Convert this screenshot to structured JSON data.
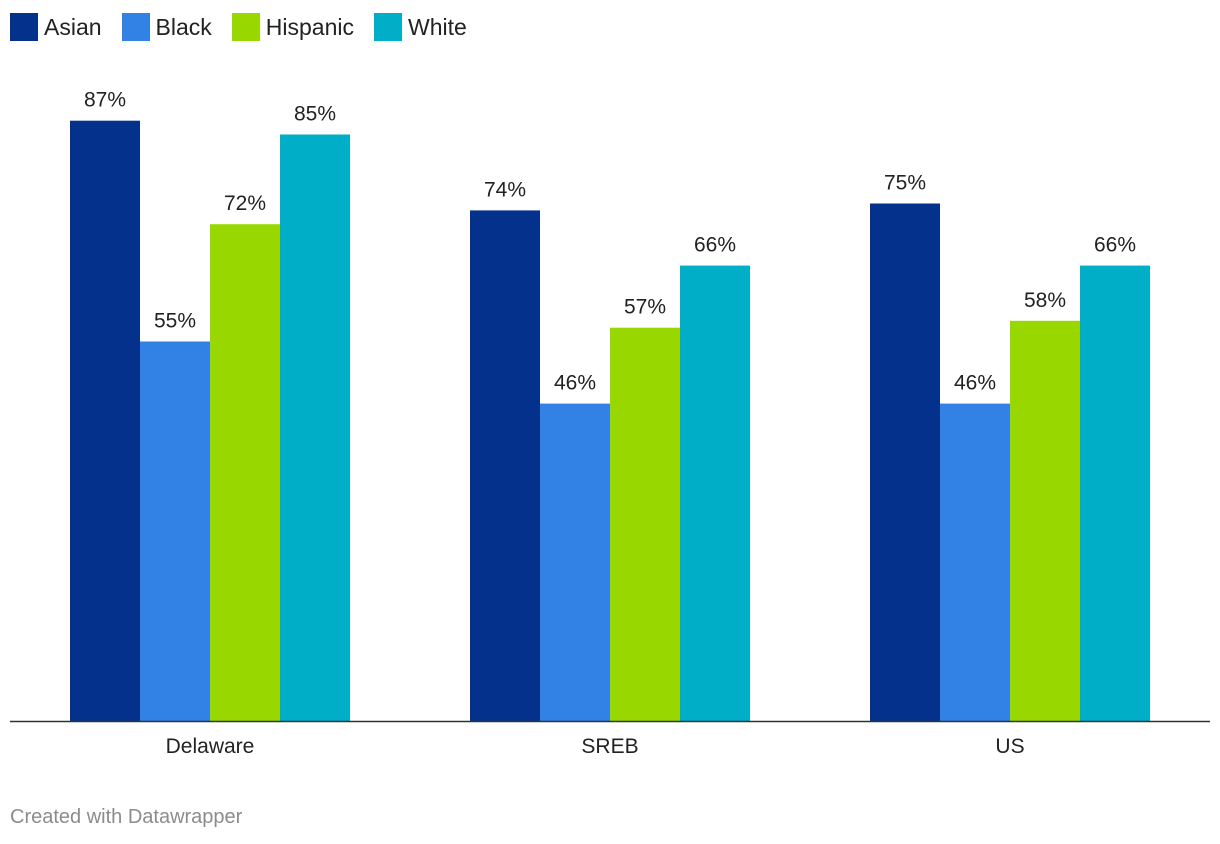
{
  "chart_data": {
    "type": "bar",
    "categories": [
      "Delaware",
      "SREB",
      "US"
    ],
    "series": [
      {
        "name": "Asian",
        "color": "#03318c",
        "values": [
          87,
          74,
          75
        ]
      },
      {
        "name": "Black",
        "color": "#3182e4",
        "values": [
          55,
          46,
          46
        ]
      },
      {
        "name": "Hispanic",
        "color": "#98d800",
        "values": [
          72,
          57,
          58
        ]
      },
      {
        "name": "White",
        "color": "#00aec7",
        "values": [
          85,
          66,
          66
        ]
      }
    ],
    "value_suffix": "%",
    "ylim": [
      0,
      100
    ],
    "grid": false,
    "legend_position": "top-left"
  },
  "footer": {
    "text": "Created with Datawrapper"
  }
}
